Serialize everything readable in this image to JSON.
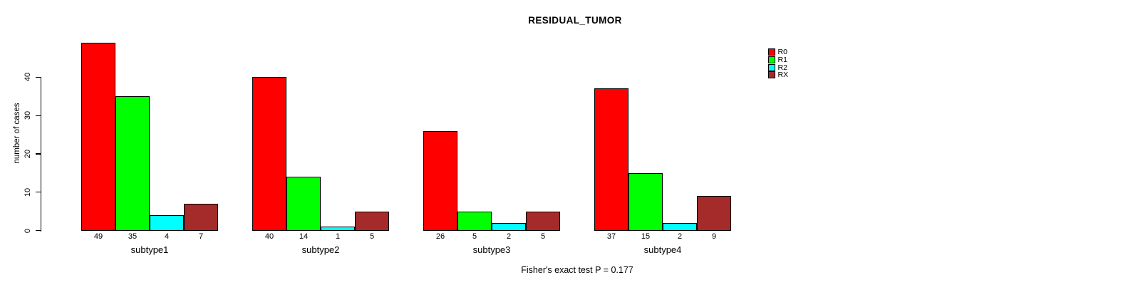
{
  "figure": {
    "background": "#ffffff",
    "text_color": "#000000"
  },
  "chart_data": {
    "type": "bar",
    "title": "RESIDUAL_TUMOR",
    "xlabel": "",
    "ylabel": "number of cases",
    "categories": [
      "subtype1",
      "subtype2",
      "subtype3",
      "subtype4"
    ],
    "series": [
      {
        "name": "R0",
        "color": "#FF0000",
        "values": [
          49,
          40,
          26,
          37
        ]
      },
      {
        "name": "R1",
        "color": "#00FF00",
        "values": [
          35,
          14,
          5,
          15
        ]
      },
      {
        "name": "R2",
        "color": "#00FFFF",
        "values": [
          4,
          1,
          2,
          2
        ]
      },
      {
        "name": "RX",
        "color": "#A52A2A",
        "values": [
          7,
          5,
          5,
          9
        ]
      }
    ],
    "yticks": [
      0,
      10,
      20,
      30,
      40
    ],
    "ylim": [
      0,
      51
    ],
    "grid": false,
    "bar_borders": "#000000",
    "value_labels_under_bars": true,
    "legend_position": "top-right-outside",
    "annotation": "Fisher's exact test P = 0.177"
  }
}
